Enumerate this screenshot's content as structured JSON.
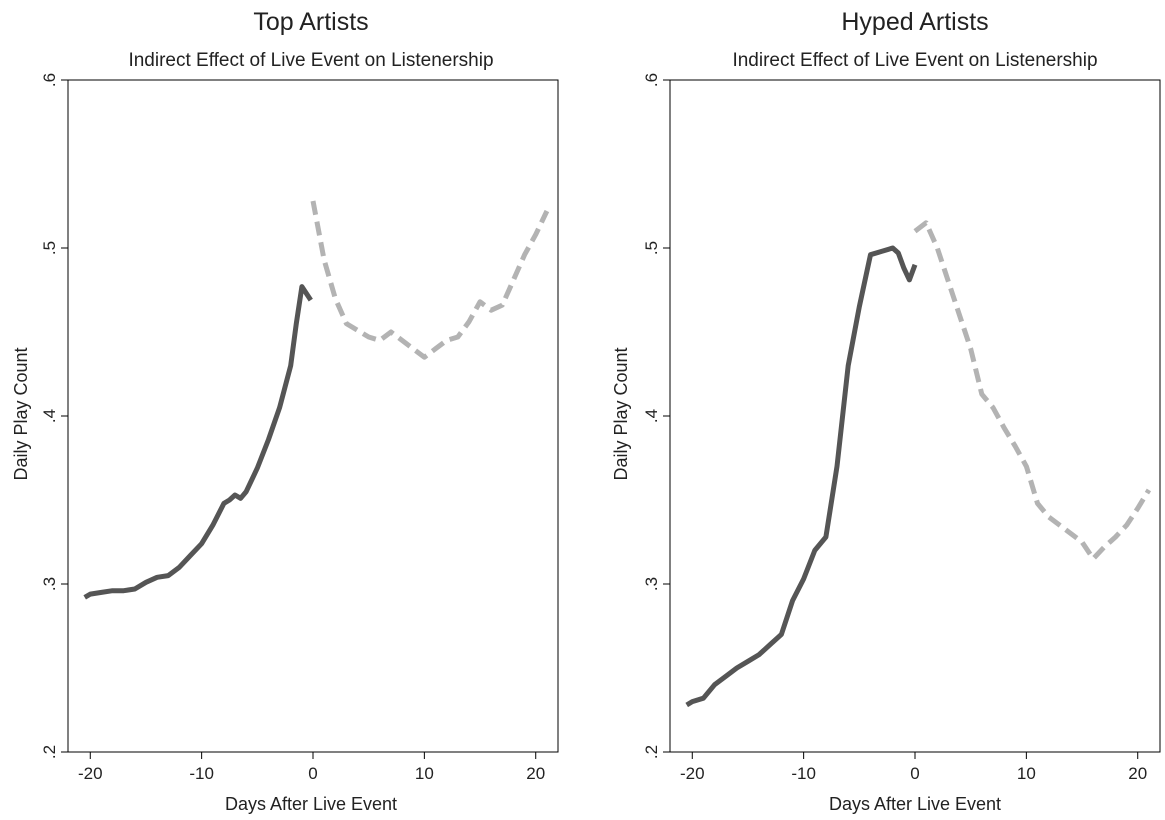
{
  "colors": {
    "observed": "#555555",
    "predicted": "#b3b3b3",
    "axis": "#000000",
    "text": "#222222"
  },
  "chart_data": [
    {
      "type": "line",
      "title": "Top Artists",
      "subtitle": "Indirect Effect of Live Event on Listenership",
      "xlabel": "Days After Live Event",
      "ylabel": "Daily Play Count",
      "xlim": [
        -22,
        22
      ],
      "ylim": [
        0.2,
        0.6
      ],
      "x_ticks": [
        -20,
        -10,
        0,
        10,
        20
      ],
      "x_tick_labels": [
        "-20",
        "-10",
        "0",
        "10",
        "20"
      ],
      "y_ticks": [
        0.2,
        0.3,
        0.4,
        0.5,
        0.6
      ],
      "y_tick_labels": [
        ".2",
        ".3",
        ".4",
        ".5",
        ".6"
      ],
      "grid": false,
      "series": [
        {
          "style": "solid",
          "color": "#555555",
          "x": [
            -20.5,
            -20,
            -19,
            -18,
            -17,
            -16,
            -15,
            -14,
            -13,
            -12,
            -11,
            -10,
            -9,
            -8,
            -7.5,
            -7,
            -6.5,
            -6,
            -5,
            -4,
            -3,
            -2,
            -1.5,
            -1,
            -0.5,
            -0.2
          ],
          "y": [
            0.292,
            0.294,
            0.295,
            0.296,
            0.296,
            0.297,
            0.301,
            0.304,
            0.305,
            0.31,
            0.317,
            0.324,
            0.335,
            0.348,
            0.35,
            0.353,
            0.351,
            0.355,
            0.369,
            0.386,
            0.405,
            0.43,
            0.455,
            0.477,
            0.472,
            0.469
          ]
        },
        {
          "style": "dashed",
          "color": "#b3b3b3",
          "x": [
            0,
            1,
            2,
            3,
            4,
            5,
            6,
            7,
            8,
            9,
            10,
            11,
            12,
            13,
            14,
            15,
            16,
            17,
            18,
            19,
            20,
            21
          ],
          "y": [
            0.528,
            0.493,
            0.47,
            0.455,
            0.451,
            0.447,
            0.445,
            0.45,
            0.445,
            0.44,
            0.435,
            0.44,
            0.445,
            0.447,
            0.456,
            0.468,
            0.463,
            0.466,
            0.481,
            0.496,
            0.508,
            0.522
          ]
        }
      ]
    },
    {
      "type": "line",
      "title": "Hyped Artists",
      "subtitle": "Indirect Effect of Live Event on Listenership",
      "xlabel": "Days After Live Event",
      "ylabel": "Daily Play Count",
      "xlim": [
        -22,
        22
      ],
      "ylim": [
        0.2,
        0.6
      ],
      "x_ticks": [
        -20,
        -10,
        0,
        10,
        20
      ],
      "x_tick_labels": [
        "-20",
        "-10",
        "0",
        "10",
        "20"
      ],
      "y_ticks": [
        0.2,
        0.3,
        0.4,
        0.5,
        0.6
      ],
      "y_tick_labels": [
        ".2",
        ".3",
        ".4",
        ".5",
        ".6"
      ],
      "grid": false,
      "series": [
        {
          "style": "solid",
          "color": "#555555",
          "x": [
            -20.5,
            -20,
            -19,
            -18,
            -17,
            -16,
            -15,
            -14,
            -13,
            -12,
            -11,
            -10,
            -9,
            -8,
            -7,
            -6,
            -5,
            -4,
            -3,
            -2,
            -1.5,
            -1,
            -0.5,
            0
          ],
          "y": [
            0.228,
            0.23,
            0.232,
            0.24,
            0.245,
            0.25,
            0.254,
            0.258,
            0.264,
            0.27,
            0.29,
            0.303,
            0.32,
            0.328,
            0.37,
            0.43,
            0.465,
            0.496,
            0.498,
            0.5,
            0.497,
            0.488,
            0.481,
            0.49
          ]
        },
        {
          "style": "dashed",
          "color": "#b3b3b3",
          "x": [
            0,
            1,
            2,
            3,
            4,
            5,
            6,
            7,
            8,
            9,
            10,
            11,
            12,
            13,
            14,
            15,
            16,
            17,
            18,
            19,
            20,
            21
          ],
          "y": [
            0.51,
            0.515,
            0.5,
            0.48,
            0.46,
            0.44,
            0.413,
            0.405,
            0.393,
            0.382,
            0.37,
            0.348,
            0.34,
            0.335,
            0.33,
            0.325,
            0.315,
            0.322,
            0.328,
            0.335,
            0.345,
            0.356
          ]
        }
      ]
    }
  ]
}
